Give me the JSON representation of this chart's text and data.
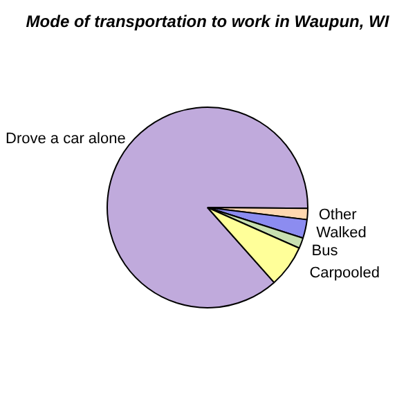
{
  "chart_data": {
    "type": "pie",
    "title": "Mode of transportation to work in Waupun, WI",
    "categories": [
      "Drove a car alone",
      "Other",
      "Walked",
      "Bus",
      "Carpooled"
    ],
    "values": [
      86.7,
      1.8,
      3.0,
      1.7,
      6.8
    ],
    "colors": [
      "#c0aadc",
      "#ffd8b0",
      "#8c8cf0",
      "#c8e0b0",
      "#ffff99"
    ]
  }
}
